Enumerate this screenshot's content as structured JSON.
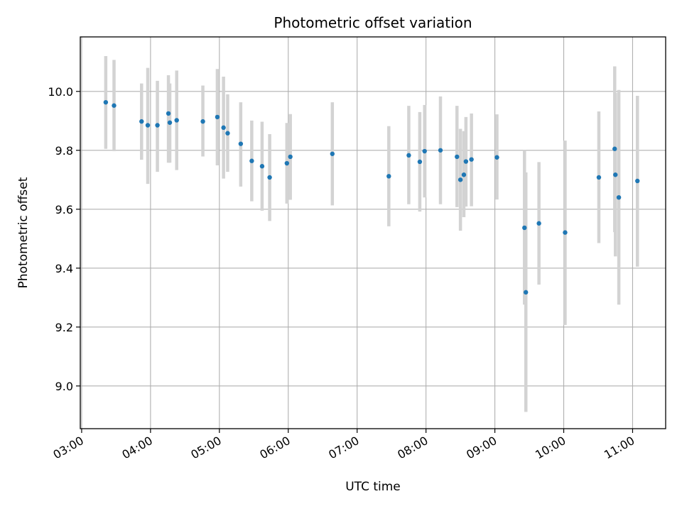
{
  "chart_data": {
    "type": "scatter",
    "title": "Photometric offset variation",
    "xlabel": "UTC time",
    "ylabel": "Photometric offset",
    "x_unit": "hours UTC",
    "xlim": [
      2.98,
      11.48
    ],
    "ylim": [
      8.855,
      10.185
    ],
    "x_ticks": [
      3,
      4,
      5,
      6,
      7,
      8,
      9,
      10,
      11
    ],
    "x_tick_labels": [
      "03:00",
      "04:00",
      "05:00",
      "06:00",
      "07:00",
      "08:00",
      "09:00",
      "10:00",
      "11:00"
    ],
    "y_ticks": [
      9.0,
      9.2,
      9.4,
      9.6,
      9.8,
      10.0
    ],
    "y_tick_labels": [
      "9.0",
      "9.2",
      "9.4",
      "9.6",
      "9.8",
      "10.0"
    ],
    "grid": true,
    "colors": {
      "point": "#1f77b4",
      "errorbar": "#d3d3d3",
      "grid": "#b0b0b0"
    },
    "points": [
      {
        "x": 3.35,
        "y": 9.963,
        "ylo": 9.805,
        "yhi": 10.12
      },
      {
        "x": 3.47,
        "y": 9.952,
        "ylo": 9.797,
        "yhi": 10.107
      },
      {
        "x": 3.87,
        "y": 9.898,
        "ylo": 9.768,
        "yhi": 10.027
      },
      {
        "x": 3.96,
        "y": 9.885,
        "ylo": 9.686,
        "yhi": 10.08
      },
      {
        "x": 4.1,
        "y": 9.885,
        "ylo": 9.727,
        "yhi": 10.036
      },
      {
        "x": 4.26,
        "y": 9.925,
        "ylo": 9.758,
        "yhi": 10.055
      },
      {
        "x": 4.28,
        "y": 9.894,
        "ylo": 9.758,
        "yhi": 10.027
      },
      {
        "x": 4.38,
        "y": 9.902,
        "ylo": 9.733,
        "yhi": 10.071
      },
      {
        "x": 4.76,
        "y": 9.898,
        "ylo": 9.779,
        "yhi": 10.02
      },
      {
        "x": 4.97,
        "y": 9.913,
        "ylo": 9.749,
        "yhi": 10.076
      },
      {
        "x": 5.06,
        "y": 9.877,
        "ylo": 9.704,
        "yhi": 10.05
      },
      {
        "x": 5.12,
        "y": 9.858,
        "ylo": 9.727,
        "yhi": 9.99
      },
      {
        "x": 5.31,
        "y": 9.822,
        "ylo": 9.677,
        "yhi": 9.963
      },
      {
        "x": 5.47,
        "y": 9.764,
        "ylo": 9.627,
        "yhi": 9.901
      },
      {
        "x": 5.62,
        "y": 9.746,
        "ylo": 9.595,
        "yhi": 9.897
      },
      {
        "x": 5.73,
        "y": 9.708,
        "ylo": 9.56,
        "yhi": 9.855
      },
      {
        "x": 5.98,
        "y": 9.756,
        "ylo": 9.619,
        "yhi": 9.893
      },
      {
        "x": 6.03,
        "y": 9.778,
        "ylo": 9.632,
        "yhi": 9.923
      },
      {
        "x": 6.64,
        "y": 9.788,
        "ylo": 9.613,
        "yhi": 9.963
      },
      {
        "x": 7.46,
        "y": 9.712,
        "ylo": 9.542,
        "yhi": 9.882
      },
      {
        "x": 7.75,
        "y": 9.783,
        "ylo": 9.617,
        "yhi": 9.951
      },
      {
        "x": 7.91,
        "y": 9.761,
        "ylo": 9.592,
        "yhi": 9.93
      },
      {
        "x": 7.98,
        "y": 9.797,
        "ylo": 9.64,
        "yhi": 9.954
      },
      {
        "x": 8.21,
        "y": 9.8,
        "ylo": 9.617,
        "yhi": 9.983
      },
      {
        "x": 8.45,
        "y": 9.778,
        "ylo": 9.607,
        "yhi": 9.951
      },
      {
        "x": 8.5,
        "y": 9.7,
        "ylo": 9.527,
        "yhi": 9.873
      },
      {
        "x": 8.55,
        "y": 9.717,
        "ylo": 9.573,
        "yhi": 9.865
      },
      {
        "x": 8.58,
        "y": 9.762,
        "ylo": 9.609,
        "yhi": 9.913
      },
      {
        "x": 8.66,
        "y": 9.769,
        "ylo": 9.61,
        "yhi": 9.925
      },
      {
        "x": 9.03,
        "y": 9.776,
        "ylo": 9.633,
        "yhi": 9.922
      },
      {
        "x": 9.43,
        "y": 9.537,
        "ylo": 9.276,
        "yhi": 9.8
      },
      {
        "x": 9.45,
        "y": 9.318,
        "ylo": 8.912,
        "yhi": 9.725
      },
      {
        "x": 9.64,
        "y": 9.552,
        "ylo": 9.344,
        "yhi": 9.76
      },
      {
        "x": 10.02,
        "y": 9.521,
        "ylo": 9.207,
        "yhi": 9.833
      },
      {
        "x": 10.51,
        "y": 9.708,
        "ylo": 9.485,
        "yhi": 9.932
      },
      {
        "x": 10.74,
        "y": 9.805,
        "ylo": 9.522,
        "yhi": 10.085
      },
      {
        "x": 10.75,
        "y": 9.717,
        "ylo": 9.44,
        "yhi": 9.995
      },
      {
        "x": 10.8,
        "y": 9.64,
        "ylo": 9.276,
        "yhi": 10.005
      },
      {
        "x": 11.07,
        "y": 9.696,
        "ylo": 9.405,
        "yhi": 9.985
      }
    ]
  }
}
